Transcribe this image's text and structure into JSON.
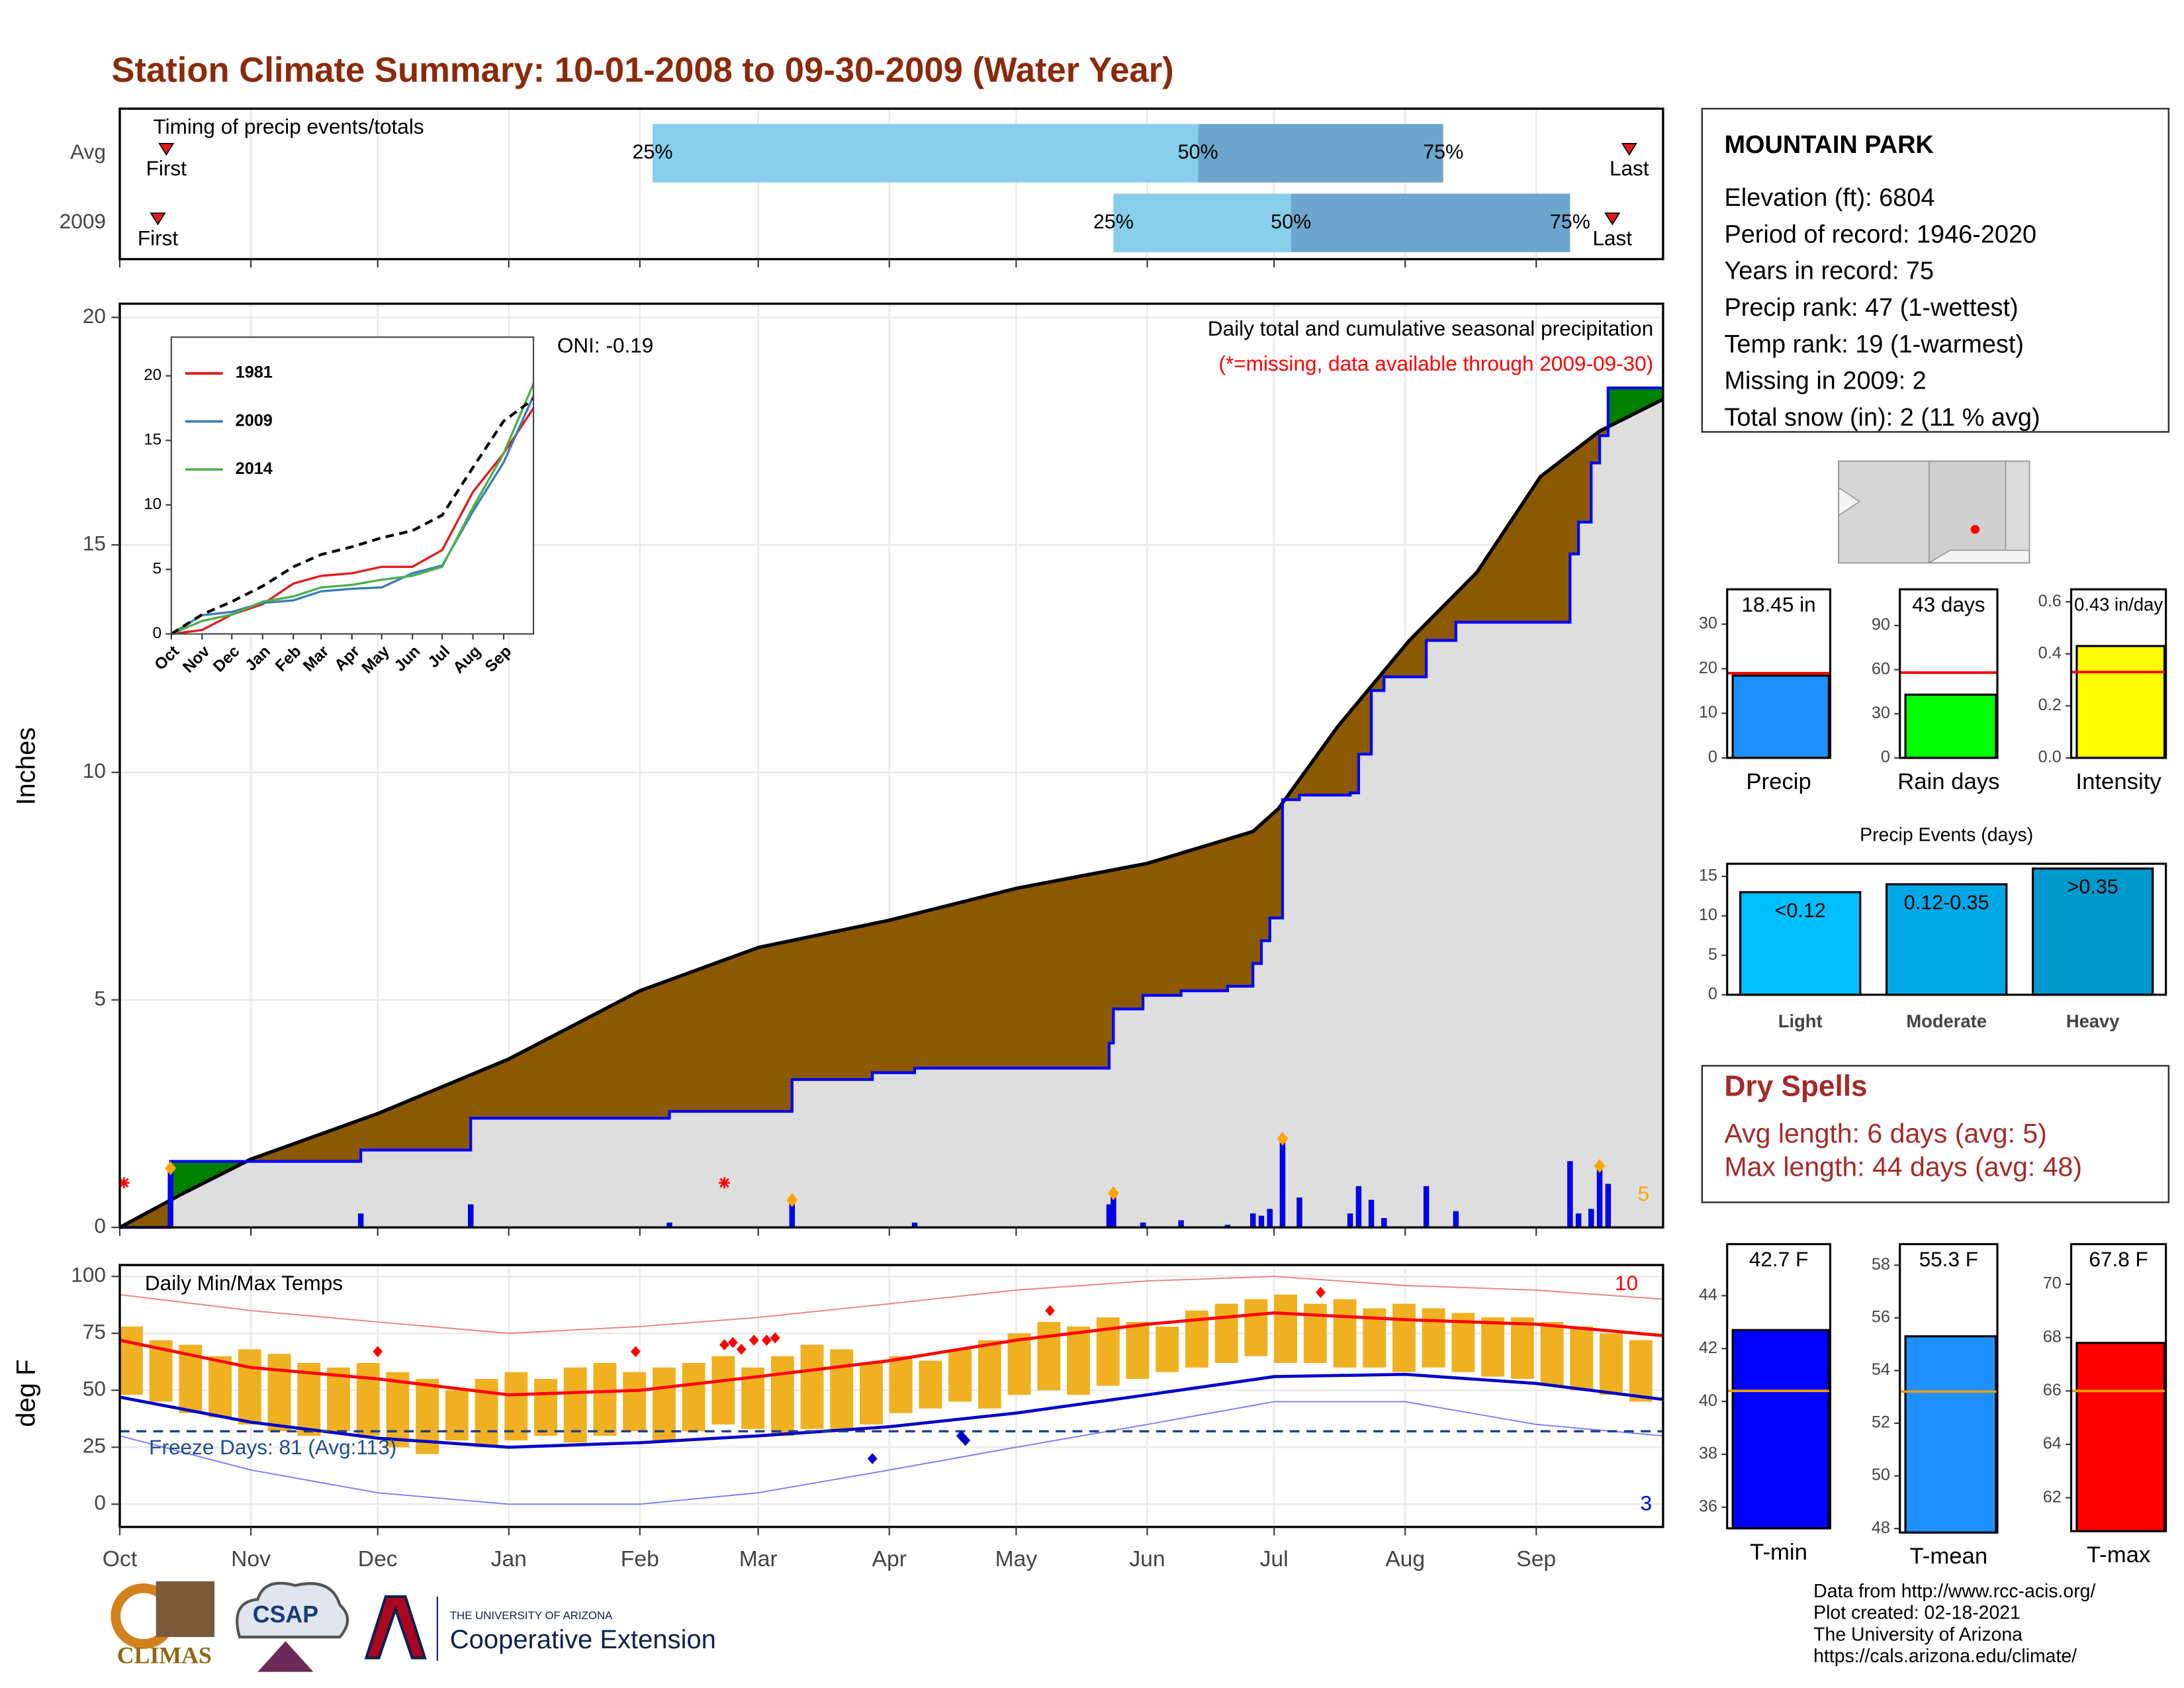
{
  "title": "Station Climate Summary: 10-01-2008 to 09-30-2009 (Water Year)",
  "station": {
    "name": "MOUNTAIN PARK",
    "lines": [
      "Elevation (ft): 6804",
      "Period of record: 1946-2020",
      "Years in record: 75",
      "Precip rank: 47 (1-wettest)",
      "Temp rank: 19 (1-warmest)",
      "Missing in 2009: 2",
      "Total snow (in): 2 (11 % avg)"
    ]
  },
  "dry_spells": {
    "title": "Dry Spells",
    "lines": [
      "Avg length: 6 days (avg: 5)",
      "Max length: 44 days (avg: 48)"
    ]
  },
  "footer": [
    "Data from http://www.rcc-acis.org/",
    "Plot created: 02-18-2021",
    "The University of Arizona",
    "https://cals.arizona.edu/climate/"
  ],
  "logos": {
    "climas": "CLIMAS",
    "csap": "CSAP",
    "university": "THE UNIVERSITY OF ARIZONA",
    "extension": "Cooperative Extension"
  },
  "chart_data": [
    {
      "type": "timing",
      "title": "Timing of precip events/totals",
      "xlim": [
        0,
        365
      ],
      "rows": [
        {
          "label": "Avg",
          "first": 11,
          "q25": 126,
          "q50": 255,
          "q75": 313,
          "last": 357
        },
        {
          "label": "2009",
          "first": 9,
          "q25": 235,
          "q50": 277,
          "q75": 343,
          "last": 353
        }
      ],
      "first_label": "First",
      "last_label": "Last",
      "q_labels": [
        "25%",
        "50%",
        "75%"
      ],
      "colors": {
        "early": "#87ceeb",
        "late": "#6ca6cd",
        "marker": "#e31a1c"
      }
    },
    {
      "type": "precip",
      "title": "Daily total and cumulative seasonal precipitation",
      "subtitle": "(*=missing, data available through 2009-09-30)",
      "annotation": "ONI: -0.19",
      "ylabel": "Inches",
      "xlim": [
        0,
        365
      ],
      "ylim": [
        0,
        20.3
      ],
      "yticks": [
        0,
        5,
        10,
        15,
        20
      ],
      "grid": true,
      "base_fill": "#dedede",
      "series": [
        {
          "color": "#000000",
          "fill": "#8b5a00",
          "x": [
            0,
            14,
            31,
            61,
            92,
            123,
            151,
            182,
            212,
            243,
            268,
            274,
            288,
            305,
            321,
            336,
            350,
            365
          ],
          "values": [
            0,
            0.7,
            1.5,
            2.5,
            3.7,
            5.2,
            6.15,
            6.75,
            7.45,
            8.0,
            8.7,
            9.2,
            11.0,
            12.9,
            14.4,
            16.5,
            17.5,
            18.2
          ]
        },
        {
          "color": "#0000ff",
          "fill_above": "#008000",
          "step": "post",
          "x": [
            0,
            12,
            57,
            83,
            130,
            159,
            178,
            188,
            234,
            235,
            242,
            251,
            262,
            268,
            270,
            272,
            275,
            279,
            291,
            293,
            296,
            299,
            309,
            316,
            343,
            345,
            348,
            350,
            352,
            365
          ],
          "values": [
            0,
            1.45,
            1.7,
            2.4,
            2.55,
            3.25,
            3.4,
            3.5,
            4.05,
            4.8,
            5.1,
            5.2,
            5.3,
            5.8,
            6.3,
            6.8,
            9.4,
            9.5,
            9.55,
            10.4,
            11.8,
            12.1,
            12.9,
            13.3,
            14.8,
            15.5,
            16.8,
            17.4,
            18.45,
            18.45
          ]
        }
      ],
      "daily": {
        "color": "#0000ff",
        "x": [
          12,
          57,
          83,
          130,
          159,
          188,
          234,
          235,
          242,
          251,
          262,
          268,
          270,
          272,
          275,
          279,
          291,
          293,
          296,
          299,
          309,
          316,
          343,
          345,
          348,
          350,
          352
        ],
        "values": [
          1.3,
          0.3,
          0.5,
          0.1,
          0.6,
          0.1,
          0.5,
          0.75,
          0.1,
          0.15,
          0.05,
          0.3,
          0.25,
          0.4,
          1.95,
          0.65,
          0.3,
          0.9,
          0.6,
          0.2,
          0.9,
          0.35,
          1.45,
          0.3,
          0.4,
          1.35,
          0.95
        ]
      },
      "top_days": [
        12,
        159,
        235,
        275,
        350
      ],
      "top_color": "#ffa500",
      "top_label": 5,
      "missing_days": [
        0,
        142
      ],
      "missing_color": "#ff0000"
    },
    {
      "type": "line",
      "xlim": [
        0,
        365
      ],
      "ylim": [
        0,
        23
      ],
      "yticks": [
        0,
        5,
        10,
        15,
        20
      ],
      "xticks": [
        {
          "value": 0,
          "label": "Oct"
        },
        {
          "value": 31,
          "label": "Nov"
        },
        {
          "value": 61,
          "label": "Dec"
        },
        {
          "value": 92,
          "label": "Jan"
        },
        {
          "value": 123,
          "label": "Feb"
        },
        {
          "value": 151,
          "label": "Mar"
        },
        {
          "value": 182,
          "label": "Apr"
        },
        {
          "value": 212,
          "label": "May"
        },
        {
          "value": 243,
          "label": "Jun"
        },
        {
          "value": 273,
          "label": "Jul"
        },
        {
          "value": 304,
          "label": "Aug"
        },
        {
          "value": 335,
          "label": "Sep"
        }
      ],
      "x": [
        0,
        31,
        61,
        92,
        123,
        151,
        182,
        212,
        243,
        273,
        304,
        335,
        365
      ],
      "series": [
        {
          "name": "1981",
          "color": "#e41a1c",
          "values": [
            0,
            0.3,
            1.5,
            2.3,
            3.9,
            4.5,
            4.7,
            5.2,
            5.2,
            6.5,
            11,
            14,
            17.5
          ]
        },
        {
          "name": "2009",
          "color": "#377eb8",
          "values": [
            0,
            1.45,
            1.7,
            2.4,
            2.6,
            3.3,
            3.5,
            3.6,
            4.7,
            5.3,
            9.5,
            13.3,
            18.45
          ]
        },
        {
          "name": "2014",
          "color": "#4daf4a",
          "values": [
            0,
            1.0,
            1.5,
            2.5,
            2.9,
            3.6,
            3.8,
            4.2,
            4.5,
            5.2,
            9.8,
            14,
            19.4
          ]
        },
        {
          "color": "#000000",
          "dash": true,
          "values": [
            0,
            1.5,
            2.5,
            3.7,
            5.2,
            6.15,
            6.75,
            7.45,
            8.0,
            9.2,
            12.9,
            16.5,
            18.2
          ]
        }
      ]
    },
    {
      "type": "temps",
      "title": "Daily Min/Max Temps",
      "ylabel": "deg F",
      "freeze_label": "Freeze Days: 81 (Avg:113)",
      "record_high_count": 10,
      "record_low_count": 3,
      "xlim": [
        0,
        365
      ],
      "ylim": [
        -10,
        105
      ],
      "yticks": [
        0,
        25,
        50,
        75,
        100
      ],
      "xticks": [
        {
          "value": 0,
          "label": "Oct"
        },
        {
          "value": 31,
          "label": "Nov"
        },
        {
          "value": 61,
          "label": "Dec"
        },
        {
          "value": 92,
          "label": "Jan"
        },
        {
          "value": 123,
          "label": "Feb"
        },
        {
          "value": 151,
          "label": "Mar"
        },
        {
          "value": 182,
          "label": "Apr"
        },
        {
          "value": 212,
          "label": "May"
        },
        {
          "value": 243,
          "label": "Jun"
        },
        {
          "value": 273,
          "label": "Jul"
        },
        {
          "value": 304,
          "label": "Aug"
        },
        {
          "value": 335,
          "label": "Sep"
        }
      ],
      "grid": true,
      "freeze": 32,
      "bars": {
        "color": "#efb121",
        "x": [
          0,
          7,
          14,
          21,
          28,
          35,
          42,
          49,
          56,
          63,
          70,
          77,
          84,
          91,
          98,
          105,
          112,
          119,
          126,
          133,
          140,
          147,
          154,
          161,
          168,
          175,
          182,
          189,
          196,
          203,
          210,
          217,
          224,
          231,
          238,
          245,
          252,
          259,
          266,
          273,
          280,
          287,
          294,
          301,
          308,
          315,
          322,
          329,
          336,
          343,
          350,
          357
        ],
        "max": [
          78,
          72,
          70,
          65,
          68,
          66,
          62,
          60,
          62,
          58,
          55,
          50,
          55,
          58,
          55,
          60,
          62,
          58,
          60,
          62,
          65,
          60,
          65,
          70,
          68,
          62,
          65,
          63,
          68,
          72,
          75,
          80,
          78,
          82,
          80,
          78,
          85,
          88,
          90,
          92,
          88,
          90,
          86,
          88,
          86,
          84,
          82,
          82,
          80,
          78,
          75,
          72
        ],
        "min": [
          48,
          45,
          40,
          38,
          35,
          32,
          30,
          32,
          30,
          25,
          22,
          28,
          25,
          28,
          30,
          27,
          30,
          32,
          28,
          32,
          35,
          33,
          30,
          33,
          32,
          35,
          40,
          42,
          45,
          42,
          48,
          50,
          48,
          52,
          55,
          58,
          60,
          62,
          65,
          62,
          62,
          60,
          60,
          58,
          60,
          58,
          56,
          55,
          52,
          50,
          48,
          45
        ]
      },
      "monthly_x": [
        0,
        31,
        61,
        92,
        123,
        151,
        182,
        212,
        243,
        273,
        304,
        335,
        365
      ],
      "lines": [
        {
          "color": "#f08080",
          "width": 0.9,
          "values": [
            92,
            85,
            80,
            75,
            78,
            82,
            88,
            94,
            98,
            100,
            96,
            94,
            90
          ]
        },
        {
          "color": "#7b7bff",
          "width": 0.9,
          "values": [
            30,
            15,
            5,
            0,
            0,
            5,
            15,
            25,
            35,
            45,
            45,
            35,
            30
          ]
        },
        {
          "color": "#ff0000",
          "width": 2.2,
          "values": [
            72,
            60,
            55,
            48,
            50,
            56,
            63,
            72,
            79,
            84,
            81,
            79,
            74
          ]
        },
        {
          "color": "#0000cd",
          "width": 2.2,
          "values": [
            47,
            36,
            29,
            25,
            27,
            30,
            34,
            40,
            48,
            56,
            57,
            53,
            46
          ]
        }
      ],
      "record_highs": {
        "color": "#ff0000",
        "x": [
          61,
          122,
          143,
          145,
          147,
          150,
          153,
          155,
          220,
          284
        ],
        "values": [
          67,
          67,
          70,
          71,
          68,
          72,
          72,
          73,
          85,
          93
        ]
      },
      "record_lows": {
        "color": "#0000cd",
        "x": [
          178,
          199,
          200
        ],
        "values": [
          20,
          30,
          28
        ]
      }
    },
    {
      "type": "bar",
      "categories": [
        "Precip"
      ],
      "values": [
        18.45
      ],
      "value_labels": [
        "18.45 in"
      ],
      "average": 19,
      "ylim": [
        0,
        37.8
      ],
      "yticks": [
        0,
        10,
        20,
        30
      ],
      "color": "#1e90ff",
      "average_color": "#ff0000"
    },
    {
      "type": "bar",
      "categories": [
        "Rain days"
      ],
      "values": [
        43
      ],
      "value_labels": [
        "43 days"
      ],
      "average": 58,
      "ylim": [
        0,
        114.6
      ],
      "yticks": [
        0,
        30,
        60,
        90
      ],
      "color": "#00ff00",
      "average_color": "#ff0000"
    },
    {
      "type": "bar",
      "categories": [
        "Intensity"
      ],
      "values": [
        0.43
      ],
      "value_labels": [
        "0.43 in/day"
      ],
      "average": 0.33,
      "ylim": [
        0,
        0.648
      ],
      "yticks": [
        {
          "value": 0,
          "label": "0.0"
        },
        0.2,
        0.4,
        0.6
      ],
      "color": "#ffff00",
      "average_color": "#ff0000"
    },
    {
      "type": "bar",
      "title": "Precip Events (days)",
      "categories": [
        "Light",
        "Moderate",
        "Heavy"
      ],
      "values": [
        13,
        14,
        16
      ],
      "bar_labels": [
        "<0.12",
        "0.12-0.35",
        ">0.35"
      ],
      "colors": [
        "#00bfff",
        "#00a9e6",
        "#0099cc"
      ],
      "ylim": [
        0,
        16.6
      ],
      "yticks": [
        0,
        5,
        10,
        15
      ]
    },
    {
      "type": "bar",
      "categories": [
        "T-min"
      ],
      "values": [
        42.7
      ],
      "value_labels": [
        "42.7 F"
      ],
      "average": 40.4,
      "ylim": [
        35.2,
        45.95
      ],
      "yticks": [
        36,
        38,
        40,
        42,
        44
      ],
      "color": "#0000ff",
      "average_color": "#e69f00"
    },
    {
      "type": "bar",
      "categories": [
        "T-mean"
      ],
      "values": [
        55.3
      ],
      "value_labels": [
        "55.3 F"
      ],
      "average": 53.2,
      "ylim": [
        47.85,
        58.8
      ],
      "yticks": [
        48,
        50,
        52,
        54,
        56,
        58
      ],
      "color": "#1e90ff",
      "average_color": "#e69f00"
    },
    {
      "type": "bar",
      "categories": [
        "T-max"
      ],
      "values": [
        67.8
      ],
      "value_labels": [
        "67.8 F"
      ],
      "average": 66,
      "ylim": [
        60.75,
        71.5
      ],
      "yticks": [
        62,
        64,
        66,
        68,
        70
      ],
      "color": "#ff0000",
      "average_color": "#e69f00"
    }
  ]
}
